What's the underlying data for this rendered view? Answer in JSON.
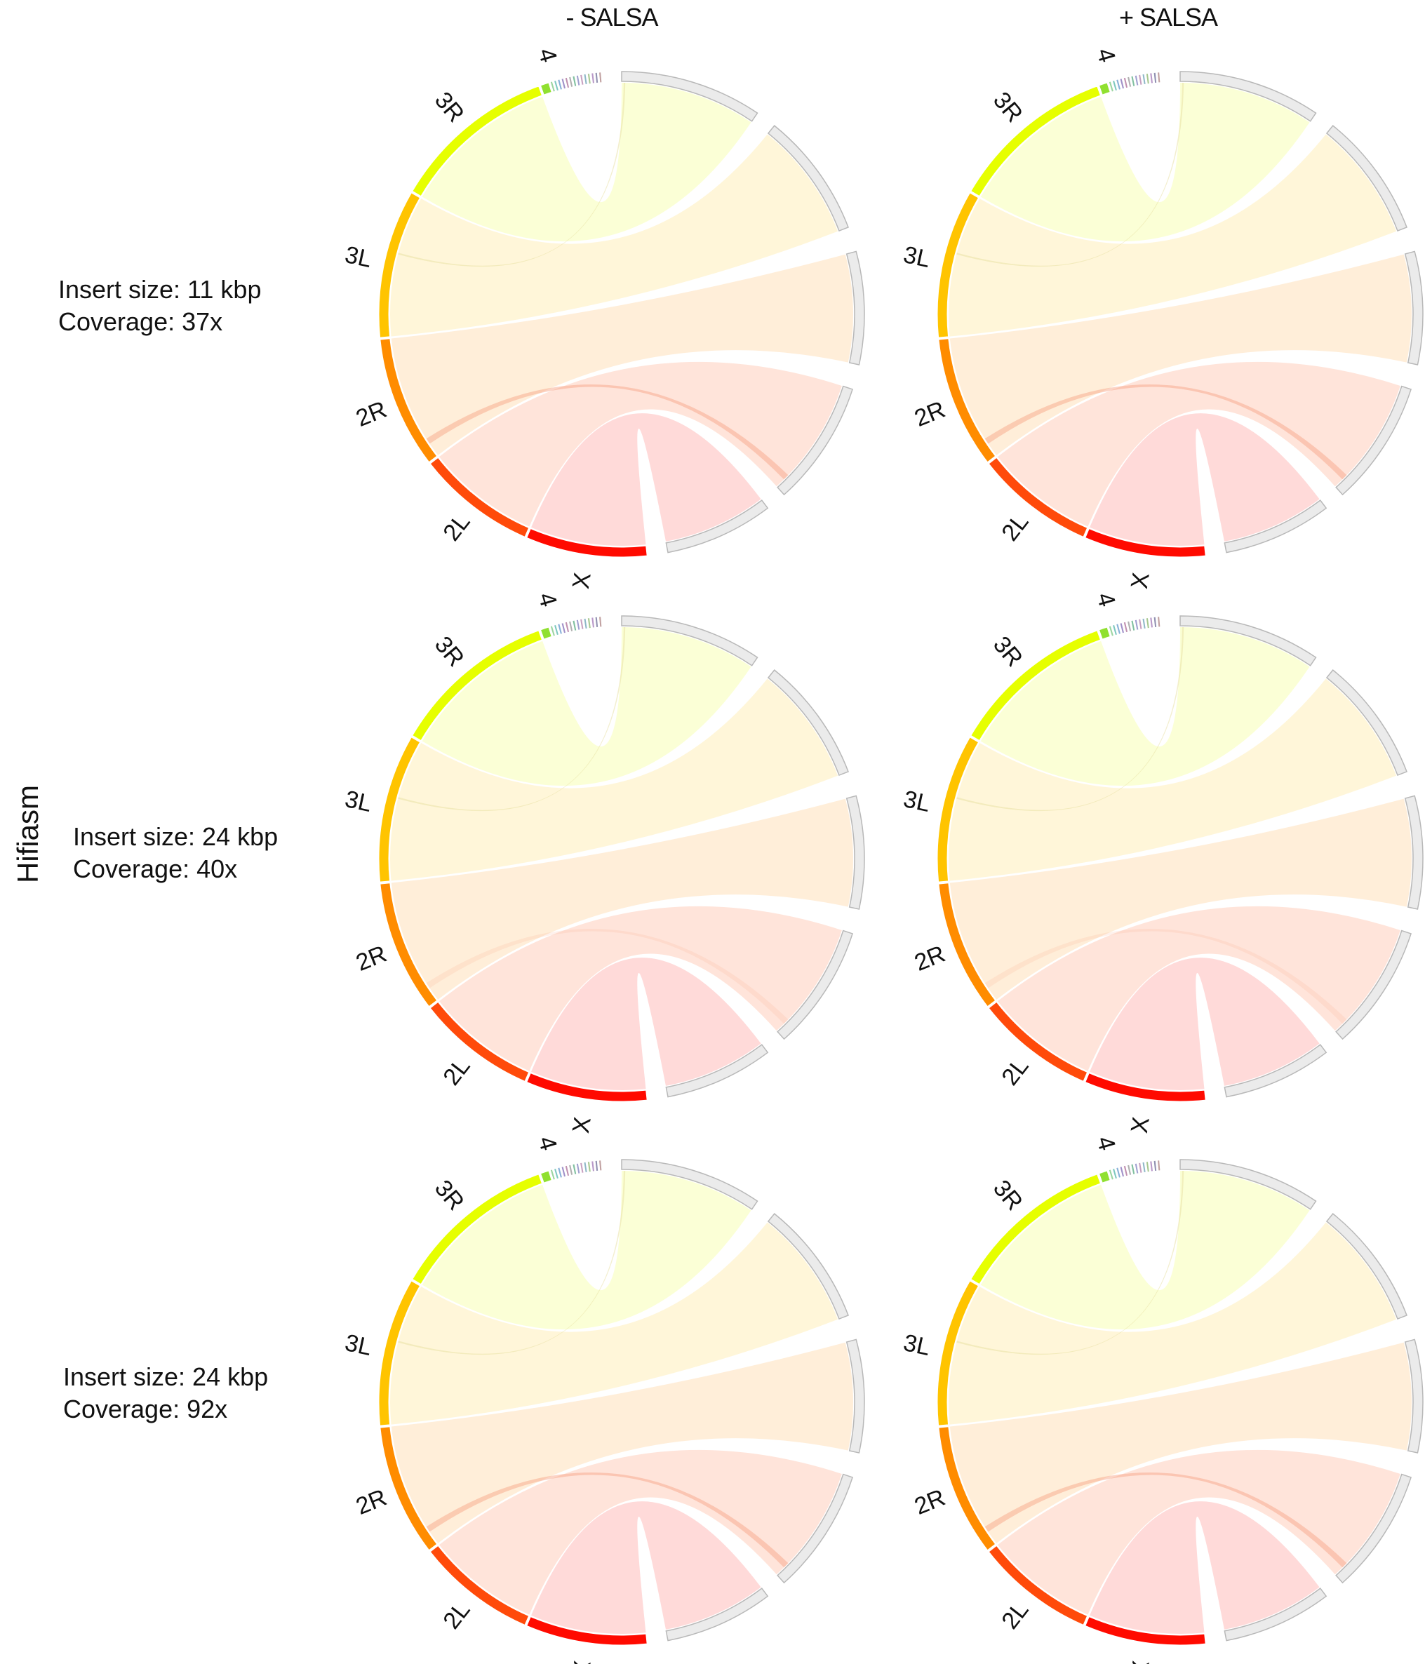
{
  "columns": [
    "- SALSA",
    "+ SALSA"
  ],
  "method": "Hifiasm",
  "rows": [
    {
      "insert_size": "Insert size: 11 kbp",
      "coverage": "Coverage: 37x"
    },
    {
      "insert_size": "Insert size: 24 kbp",
      "coverage": "Coverage: 40x"
    },
    {
      "insert_size": "Insert size: 24 kbp",
      "coverage": "Coverage: 92x"
    }
  ],
  "chromosomes": [
    {
      "name": "X",
      "color": "#ff0a00"
    },
    {
      "name": "2L",
      "color": "#ff4a0a"
    },
    {
      "name": "2R",
      "color": "#ff8c00"
    },
    {
      "name": "3L",
      "color": "#ffc400"
    },
    {
      "name": "3R",
      "color": "#e6ff00"
    },
    {
      "name": "4",
      "color": "#90e030"
    }
  ],
  "contig_color": "#ebebeb"
}
